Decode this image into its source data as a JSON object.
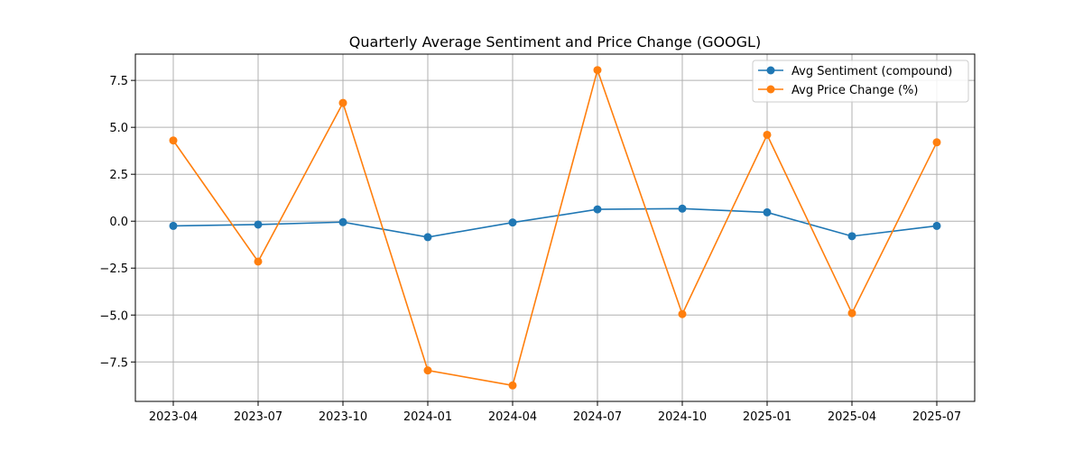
{
  "chart_data": {
    "type": "line",
    "title": "Quarterly Average Sentiment and Price Change (GOOGL)",
    "xlabel": "",
    "ylabel": "",
    "categories": [
      "2023-04",
      "2023-07",
      "2023-10",
      "2024-01",
      "2024-04",
      "2024-07",
      "2024-10",
      "2025-01",
      "2025-04",
      "2025-07"
    ],
    "yticks": [
      -7.5,
      -5.0,
      -2.5,
      0.0,
      2.5,
      5.0,
      7.5
    ],
    "ytick_labels": [
      "−7.5",
      "−5.0",
      "−2.5",
      "0.0",
      "2.5",
      "5.0",
      "7.5"
    ],
    "ylim": [
      -9.6,
      8.9
    ],
    "grid": true,
    "legend_position": "top-right",
    "series": [
      {
        "name": "Avg Sentiment (compound)",
        "color": "#1f77b4",
        "values": [
          -0.25,
          -0.18,
          -0.05,
          -0.85,
          -0.07,
          0.63,
          0.67,
          0.47,
          -0.8,
          -0.25
        ]
      },
      {
        "name": "Avg Price Change (%)",
        "color": "#ff7f0e",
        "values": [
          4.3,
          -2.15,
          6.3,
          -7.95,
          -8.75,
          8.05,
          -4.95,
          4.6,
          -4.9,
          4.2
        ]
      }
    ]
  }
}
